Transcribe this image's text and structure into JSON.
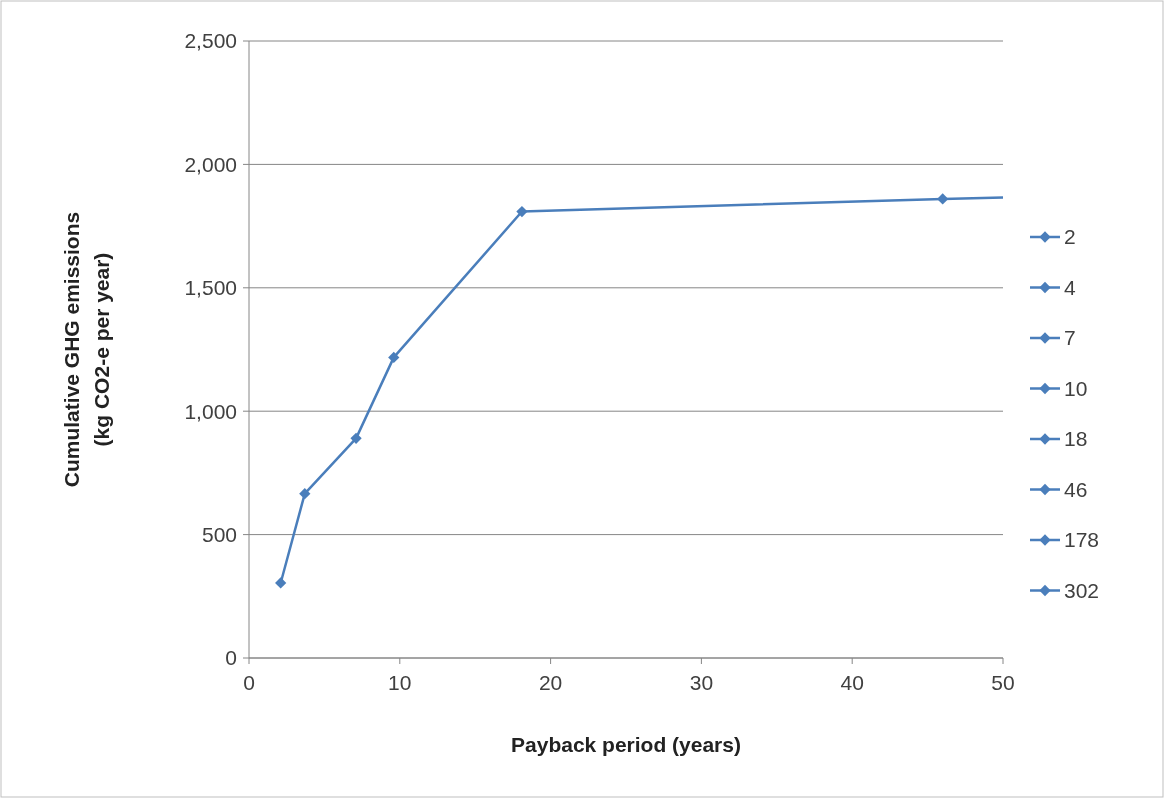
{
  "chart_data": {
    "type": "line",
    "xlabel": "Payback period (years)",
    "ylabel": "Cumulative GHG emissions\n(kg CO2-e per year)",
    "xlim": [
      0,
      50
    ],
    "xticks": [
      0,
      10,
      20,
      30,
      40,
      50
    ],
    "ylim": [
      0,
      2500
    ],
    "yticks": [
      {
        "value": 0,
        "label": "0"
      },
      {
        "value": 500,
        "label": "500"
      },
      {
        "value": 1000,
        "label": "1,000"
      },
      {
        "value": 1500,
        "label": "1,500"
      },
      {
        "value": 2000,
        "label": "2,000"
      },
      {
        "value": 2500,
        "label": "2,500"
      }
    ],
    "grid": "y",
    "legend": "right",
    "line_style": "solid",
    "series": [
      {
        "color": "#4a7ebb",
        "marker": "none",
        "x": [
          2.1,
          3.7,
          7.1,
          9.6,
          18.1,
          46,
          50
        ],
        "values": [
          304,
          666,
          890,
          1218,
          1809,
          1860,
          1866
        ]
      },
      {
        "type": "scatter",
        "name": "2",
        "color": "#4a7ebb",
        "marker": "diamond",
        "x": [
          2.1
        ],
        "values": [
          304
        ]
      },
      {
        "type": "scatter",
        "name": "4",
        "color": "#4a7ebb",
        "marker": "diamond",
        "x": [
          3.7
        ],
        "values": [
          666
        ]
      },
      {
        "type": "scatter",
        "name": "7",
        "color": "#4a7ebb",
        "marker": "diamond",
        "x": [
          7.1
        ],
        "values": [
          890
        ]
      },
      {
        "type": "scatter",
        "name": "10",
        "color": "#4a7ebb",
        "marker": "diamond",
        "x": [
          9.6
        ],
        "values": [
          1218
        ]
      },
      {
        "type": "scatter",
        "name": "18",
        "color": "#4a7ebb",
        "marker": "diamond",
        "x": [
          18.1
        ],
        "values": [
          1809
        ]
      },
      {
        "type": "scatter",
        "name": "46",
        "color": "#4a7ebb",
        "marker": "diamond",
        "x": [
          46
        ],
        "values": [
          1860
        ]
      },
      {
        "type": "scatter",
        "name": "178",
        "color": "#4a7ebb",
        "marker": "diamond"
      },
      {
        "type": "scatter",
        "name": "302",
        "color": "#4a7ebb",
        "marker": "diamond"
      }
    ]
  }
}
